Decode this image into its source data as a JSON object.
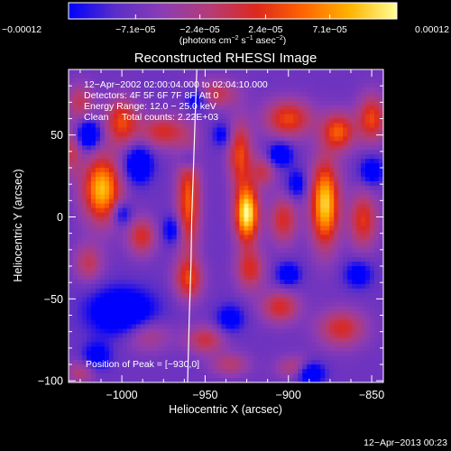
{
  "chart_data": {
    "type": "heatmap",
    "title": "Reconstructed RHESSI Image",
    "xlabel": "Heliocentric X (arcsec)",
    "ylabel": "Heliocentric Y (arcsec)",
    "xlim": [
      -1032,
      -843
    ],
    "ylim": [
      -101,
      90
    ],
    "xticks": [
      -1000,
      -950,
      -900,
      -850
    ],
    "xtick_labels": [
      "−1000",
      "−950",
      "−900",
      "−850"
    ],
    "yticks": [
      -100,
      -50,
      0,
      50
    ],
    "ytick_labels": [
      "−100",
      "−50",
      "0",
      "50"
    ],
    "colorbar": {
      "min": -0.00012,
      "max": 0.00012,
      "tick_values": [
        -0.00012,
        -7.1e-05,
        -2.4e-05,
        2.4e-05,
        7.1e-05,
        0.00012
      ],
      "tick_labels": [
        "−0.00012",
        "−7.1e−05",
        "−2.4e−05",
        "2.4e−05",
        "7.1e−05",
        "0.00012"
      ],
      "units": {
        "prefix": "(photons cm",
        "sup1": "−2",
        "mid1": " s",
        "sup2": "−1",
        "mid2": " asec",
        "sup3": "−2",
        "suffix": ")"
      },
      "colors": [
        "#0000ff",
        "#5a2ec8",
        "#8c3cb4",
        "#b43c78",
        "#dc281e",
        "#ff6400",
        "#ffb400",
        "#ffff96"
      ]
    },
    "annotations": {
      "time_range": "12−Apr−2002 02:00:04.000 to 02:04:10.000",
      "detectors": "Detectors: 4F 5F 6F 7F 8F, Att 0",
      "energy": "Energy Range: 12.0 − 25.0 keV",
      "method": "Clean",
      "counts": "Total counts: 2.22E+03",
      "peak": "Position of Peak = [−930,0]"
    },
    "peak_position": [
      -930,
      0
    ],
    "features": [
      {
        "x": -925,
        "y": 2,
        "sx": 5,
        "sy": 12,
        "v": 1.0
      },
      {
        "x": -929,
        "y": 38,
        "sx": 5,
        "sy": 14,
        "v": 0.55
      },
      {
        "x": -923,
        "y": -32,
        "sx": 6,
        "sy": 9,
        "v": 0.45
      },
      {
        "x": -1012,
        "y": 17,
        "sx": 8,
        "sy": 14,
        "v": 0.85
      },
      {
        "x": -1000,
        "y": 58,
        "sx": 7,
        "sy": 10,
        "v": 0.55
      },
      {
        "x": -1020,
        "y": -28,
        "sx": 6,
        "sy": 8,
        "v": 0.35
      },
      {
        "x": -878,
        "y": 8,
        "sx": 6,
        "sy": 18,
        "v": 0.9
      },
      {
        "x": -870,
        "y": 52,
        "sx": 7,
        "sy": 8,
        "v": 0.6
      },
      {
        "x": -850,
        "y": 60,
        "sx": 6,
        "sy": 10,
        "v": 0.55
      },
      {
        "x": -855,
        "y": -2,
        "sx": 6,
        "sy": 12,
        "v": 0.5
      },
      {
        "x": -960,
        "y": 10,
        "sx": 5,
        "sy": 22,
        "v": 0.6
      },
      {
        "x": -975,
        "y": 52,
        "sx": 10,
        "sy": 7,
        "v": 0.45
      },
      {
        "x": -988,
        "y": -12,
        "sx": 6,
        "sy": 8,
        "v": 0.45
      },
      {
        "x": -960,
        "y": -38,
        "sx": 6,
        "sy": 9,
        "v": 0.5
      },
      {
        "x": -900,
        "y": 60,
        "sx": 10,
        "sy": 8,
        "v": 0.55
      },
      {
        "x": -903,
        "y": -2,
        "sx": 6,
        "sy": 10,
        "v": 0.45
      },
      {
        "x": -905,
        "y": -55,
        "sx": 8,
        "sy": 7,
        "v": 0.45
      },
      {
        "x": -868,
        "y": -68,
        "sx": 10,
        "sy": 8,
        "v": 0.45
      },
      {
        "x": -950,
        "y": -75,
        "sx": 8,
        "sy": 6,
        "v": 0.4
      },
      {
        "x": -985,
        "y": -72,
        "sx": 10,
        "sy": 7,
        "v": 0.3
      },
      {
        "x": -945,
        "y": 75,
        "sx": 10,
        "sy": 6,
        "v": 0.4
      },
      {
        "x": -915,
        "y": 28,
        "sx": 5,
        "sy": 7,
        "v": 0.35
      },
      {
        "x": -1025,
        "y": 70,
        "sx": 6,
        "sy": 8,
        "v": 0.35
      },
      {
        "x": -1025,
        "y": -95,
        "sx": 6,
        "sy": 5,
        "v": 0.3
      },
      {
        "x": -895,
        "y": -92,
        "sx": 8,
        "sy": 5,
        "v": 0.35
      },
      {
        "x": -1030,
        "y": 40,
        "sx": 4,
        "sy": 10,
        "v": 0.35
      },
      {
        "x": -935,
        "y": -90,
        "sx": 8,
        "sy": 5,
        "v": 0.3
      },
      {
        "x": -1000,
        "y": -58,
        "sx": 14,
        "sy": 10,
        "v": -0.55
      },
      {
        "x": -990,
        "y": 32,
        "sx": 6,
        "sy": 8,
        "v": -0.5
      },
      {
        "x": -1020,
        "y": 50,
        "sx": 5,
        "sy": 6,
        "v": -0.55
      },
      {
        "x": -955,
        "y": 72,
        "sx": 5,
        "sy": 5,
        "v": -0.45
      },
      {
        "x": -905,
        "y": 38,
        "sx": 5,
        "sy": 5,
        "v": -0.5
      },
      {
        "x": -900,
        "y": -35,
        "sx": 5,
        "sy": 5,
        "v": -0.4
      },
      {
        "x": -887,
        "y": -95,
        "sx": 6,
        "sy": 5,
        "v": -0.55
      },
      {
        "x": -935,
        "y": -62,
        "sx": 6,
        "sy": 6,
        "v": -0.35
      },
      {
        "x": -895,
        "y": 20,
        "sx": 4,
        "sy": 6,
        "v": -0.35
      },
      {
        "x": -960,
        "y": 35,
        "sx": 4,
        "sy": 5,
        "v": -0.3
      },
      {
        "x": -970,
        "y": -8,
        "sx": 4,
        "sy": 6,
        "v": -0.35
      },
      {
        "x": -850,
        "y": 28,
        "sx": 5,
        "sy": 6,
        "v": -0.4
      },
      {
        "x": -1000,
        "y": 2,
        "sx": 4,
        "sy": 5,
        "v": -0.35
      },
      {
        "x": -858,
        "y": -35,
        "sx": 6,
        "sy": 6,
        "v": -0.35
      },
      {
        "x": -940,
        "y": 50,
        "sx": 4,
        "sy": 5,
        "v": -0.3
      },
      {
        "x": -1015,
        "y": -85,
        "sx": 6,
        "sy": 6,
        "v": -0.35
      }
    ],
    "limb_line": [
      [
        -955,
        90
      ],
      [
        -956,
        60
      ],
      [
        -957,
        30
      ],
      [
        -958,
        0
      ],
      [
        -958.5,
        -30
      ],
      [
        -959.5,
        -60
      ],
      [
        -960.5,
        -101
      ]
    ]
  },
  "footer": {
    "timestamp": "12−Apr−2013 00:23"
  }
}
